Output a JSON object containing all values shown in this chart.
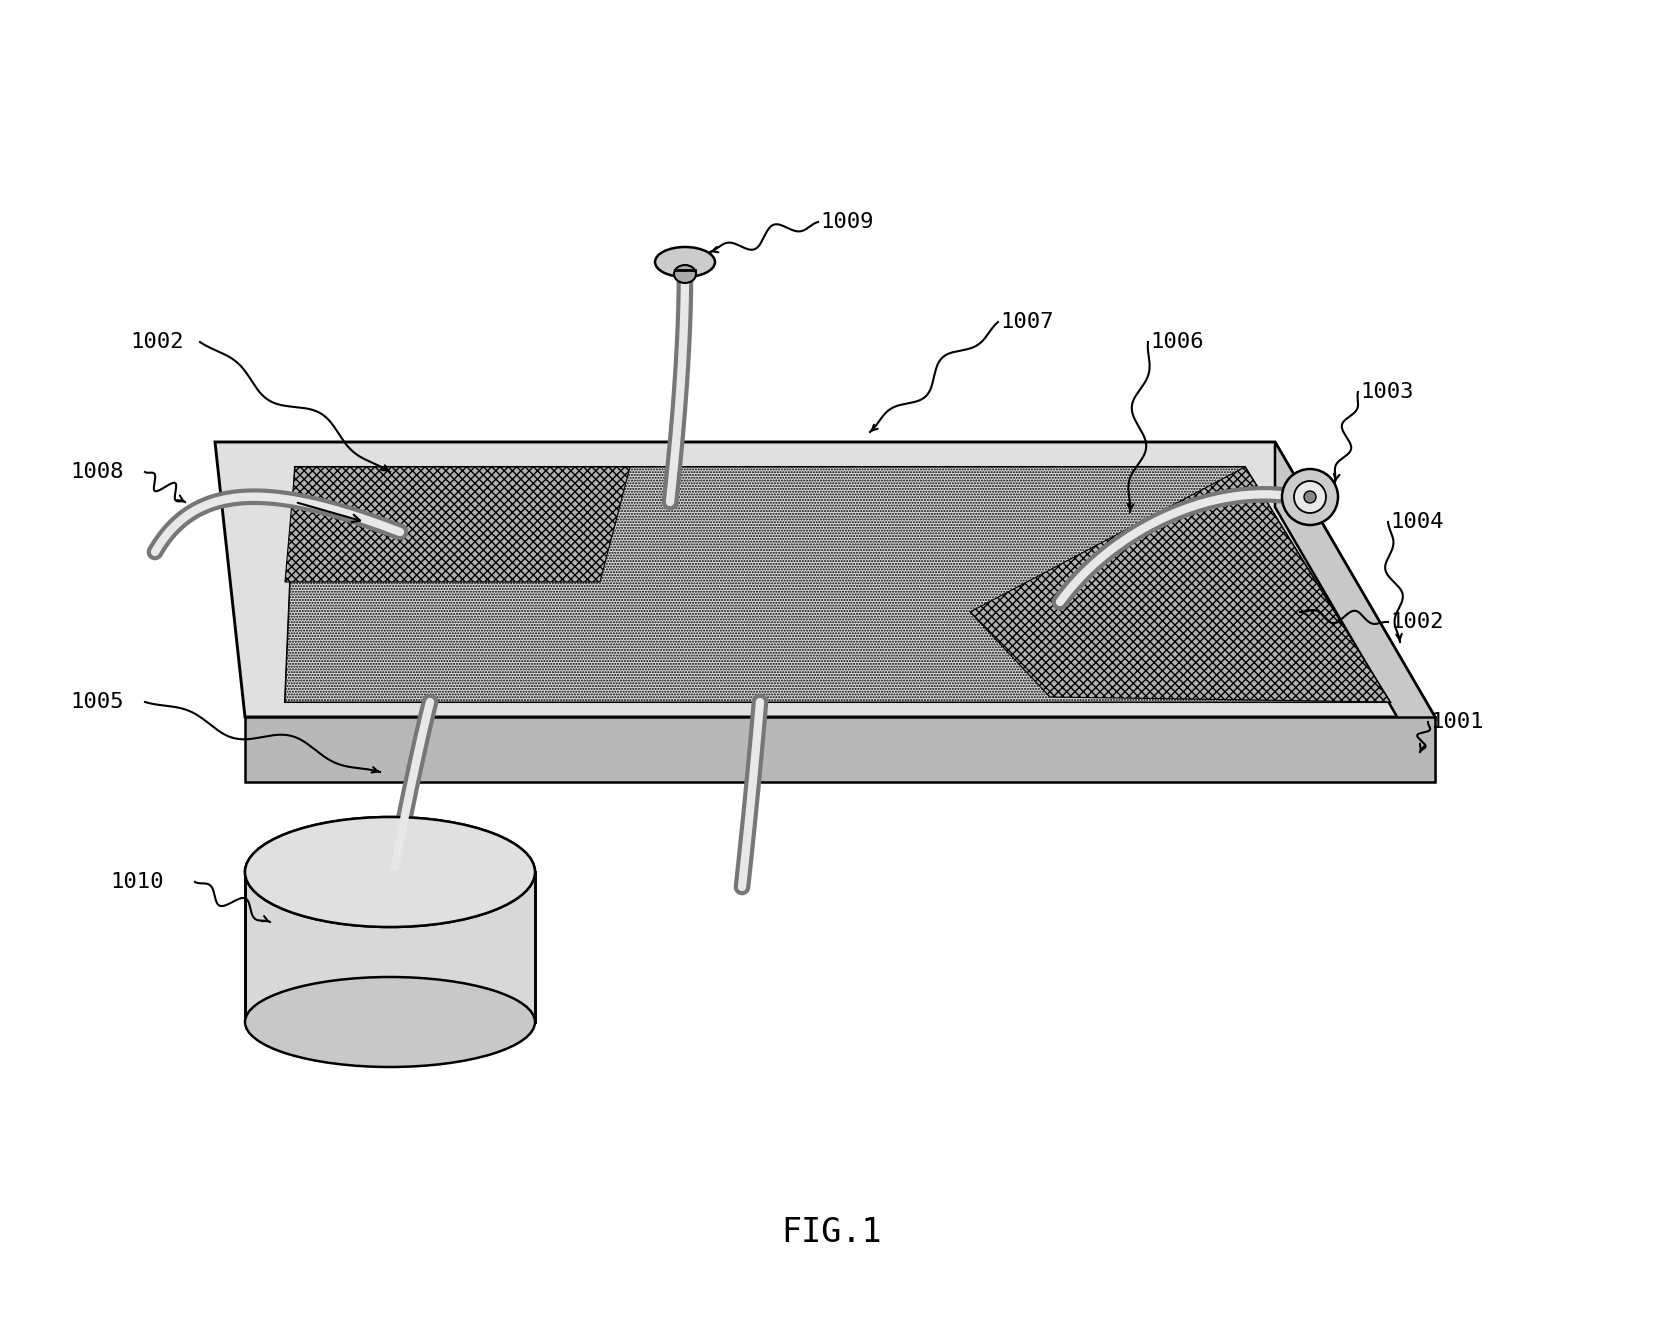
{
  "title": "FIG.1",
  "bg_color": "#ffffff",
  "line_color": "#000000",
  "font_size_label": 16,
  "font_size_title": 24,
  "lw_main": 1.8,
  "lw_tube_out": 11,
  "lw_tube_in": 5
}
